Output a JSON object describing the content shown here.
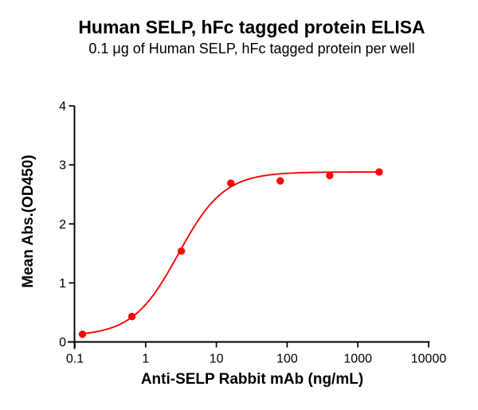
{
  "page": {
    "background": "#ffffff"
  },
  "chart_data": {
    "type": "scatter",
    "title": "Human SELP, hFc tagged protein ELISA",
    "subtitle": "0.1 μg of Human SELP, hFc tagged protein per well",
    "xlabel": "Anti-SELP Rabbit mAb (ng/mL)",
    "ylabel": "Mean Abs.(OD450)",
    "x_scale": "log10",
    "xlim": [
      0.1,
      10000
    ],
    "ylim": [
      0,
      4
    ],
    "x_ticks": [
      "0.1",
      "1",
      "10",
      "100",
      "1000",
      "10000"
    ],
    "y_ticks": [
      "0",
      "1",
      "2",
      "3",
      "4"
    ],
    "grid": false,
    "legend": "none",
    "series": [
      {
        "name": "Anti-SELP Rabbit mAb",
        "x": [
          0.128,
          0.64,
          3.2,
          16,
          80,
          400,
          2000
        ],
        "y": [
          0.13,
          0.43,
          1.54,
          2.69,
          2.73,
          2.82,
          2.88
        ],
        "marker": "circle",
        "marker_color": "#fb0505",
        "marker_radius": 4.7
      }
    ],
    "fit_curve": {
      "model": "4PL-sigmoid",
      "bottom": 0.1,
      "top": 2.88,
      "ec50": 2.9,
      "hill": 1.35,
      "color": "#fb0505"
    },
    "axis_color": "#000000",
    "text_color": "#000000"
  }
}
